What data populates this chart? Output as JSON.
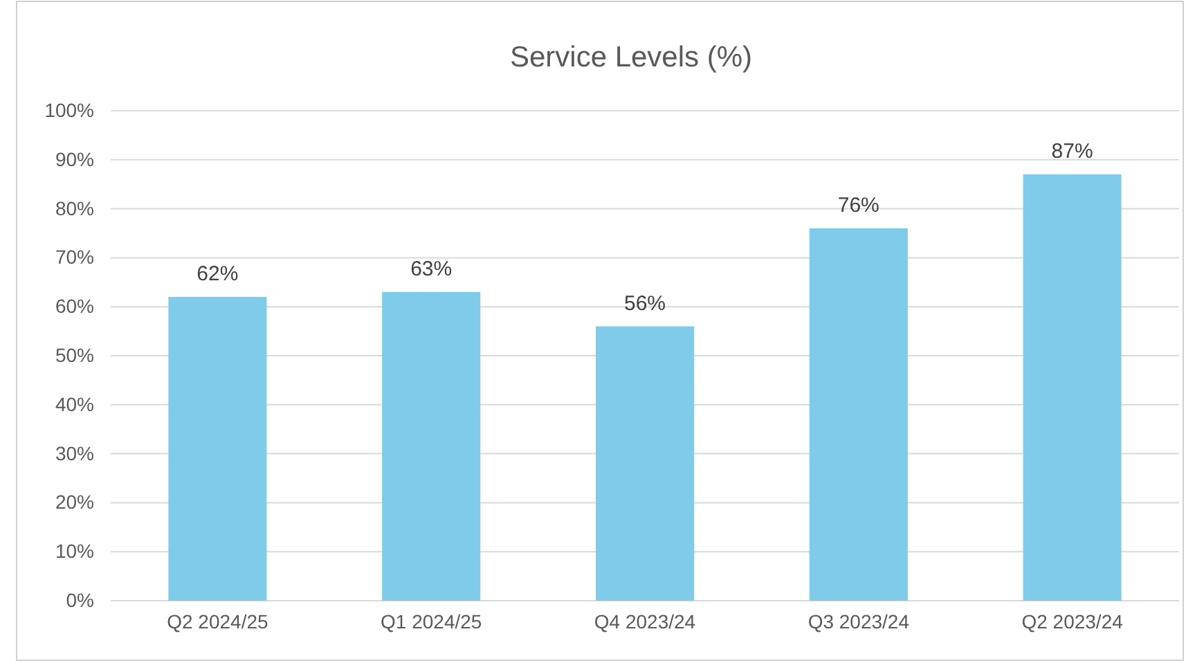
{
  "chart_data": {
    "type": "bar",
    "title": "Service Levels (%)",
    "categories": [
      "Q2 2024/25",
      "Q1 2024/25",
      "Q4 2023/24",
      "Q3 2023/24",
      "Q2 2023/24"
    ],
    "values": [
      62,
      63,
      56,
      76,
      87
    ],
    "value_labels": [
      "62%",
      "63%",
      "56%",
      "76%",
      "87%"
    ],
    "color": "#7ecbea",
    "ylim": [
      0,
      100
    ],
    "yticks": [
      {
        "value": 0,
        "label": "0%"
      },
      {
        "value": 10,
        "label": "10%"
      },
      {
        "value": 20,
        "label": "20%"
      },
      {
        "value": 30,
        "label": "30%"
      },
      {
        "value": 40,
        "label": "40%"
      },
      {
        "value": 50,
        "label": "50%"
      },
      {
        "value": 60,
        "label": "60%"
      },
      {
        "value": 70,
        "label": "70%"
      },
      {
        "value": 80,
        "label": "80%"
      },
      {
        "value": 90,
        "label": "90%"
      },
      {
        "value": 100,
        "label": "100%"
      }
    ],
    "grid": "y"
  }
}
